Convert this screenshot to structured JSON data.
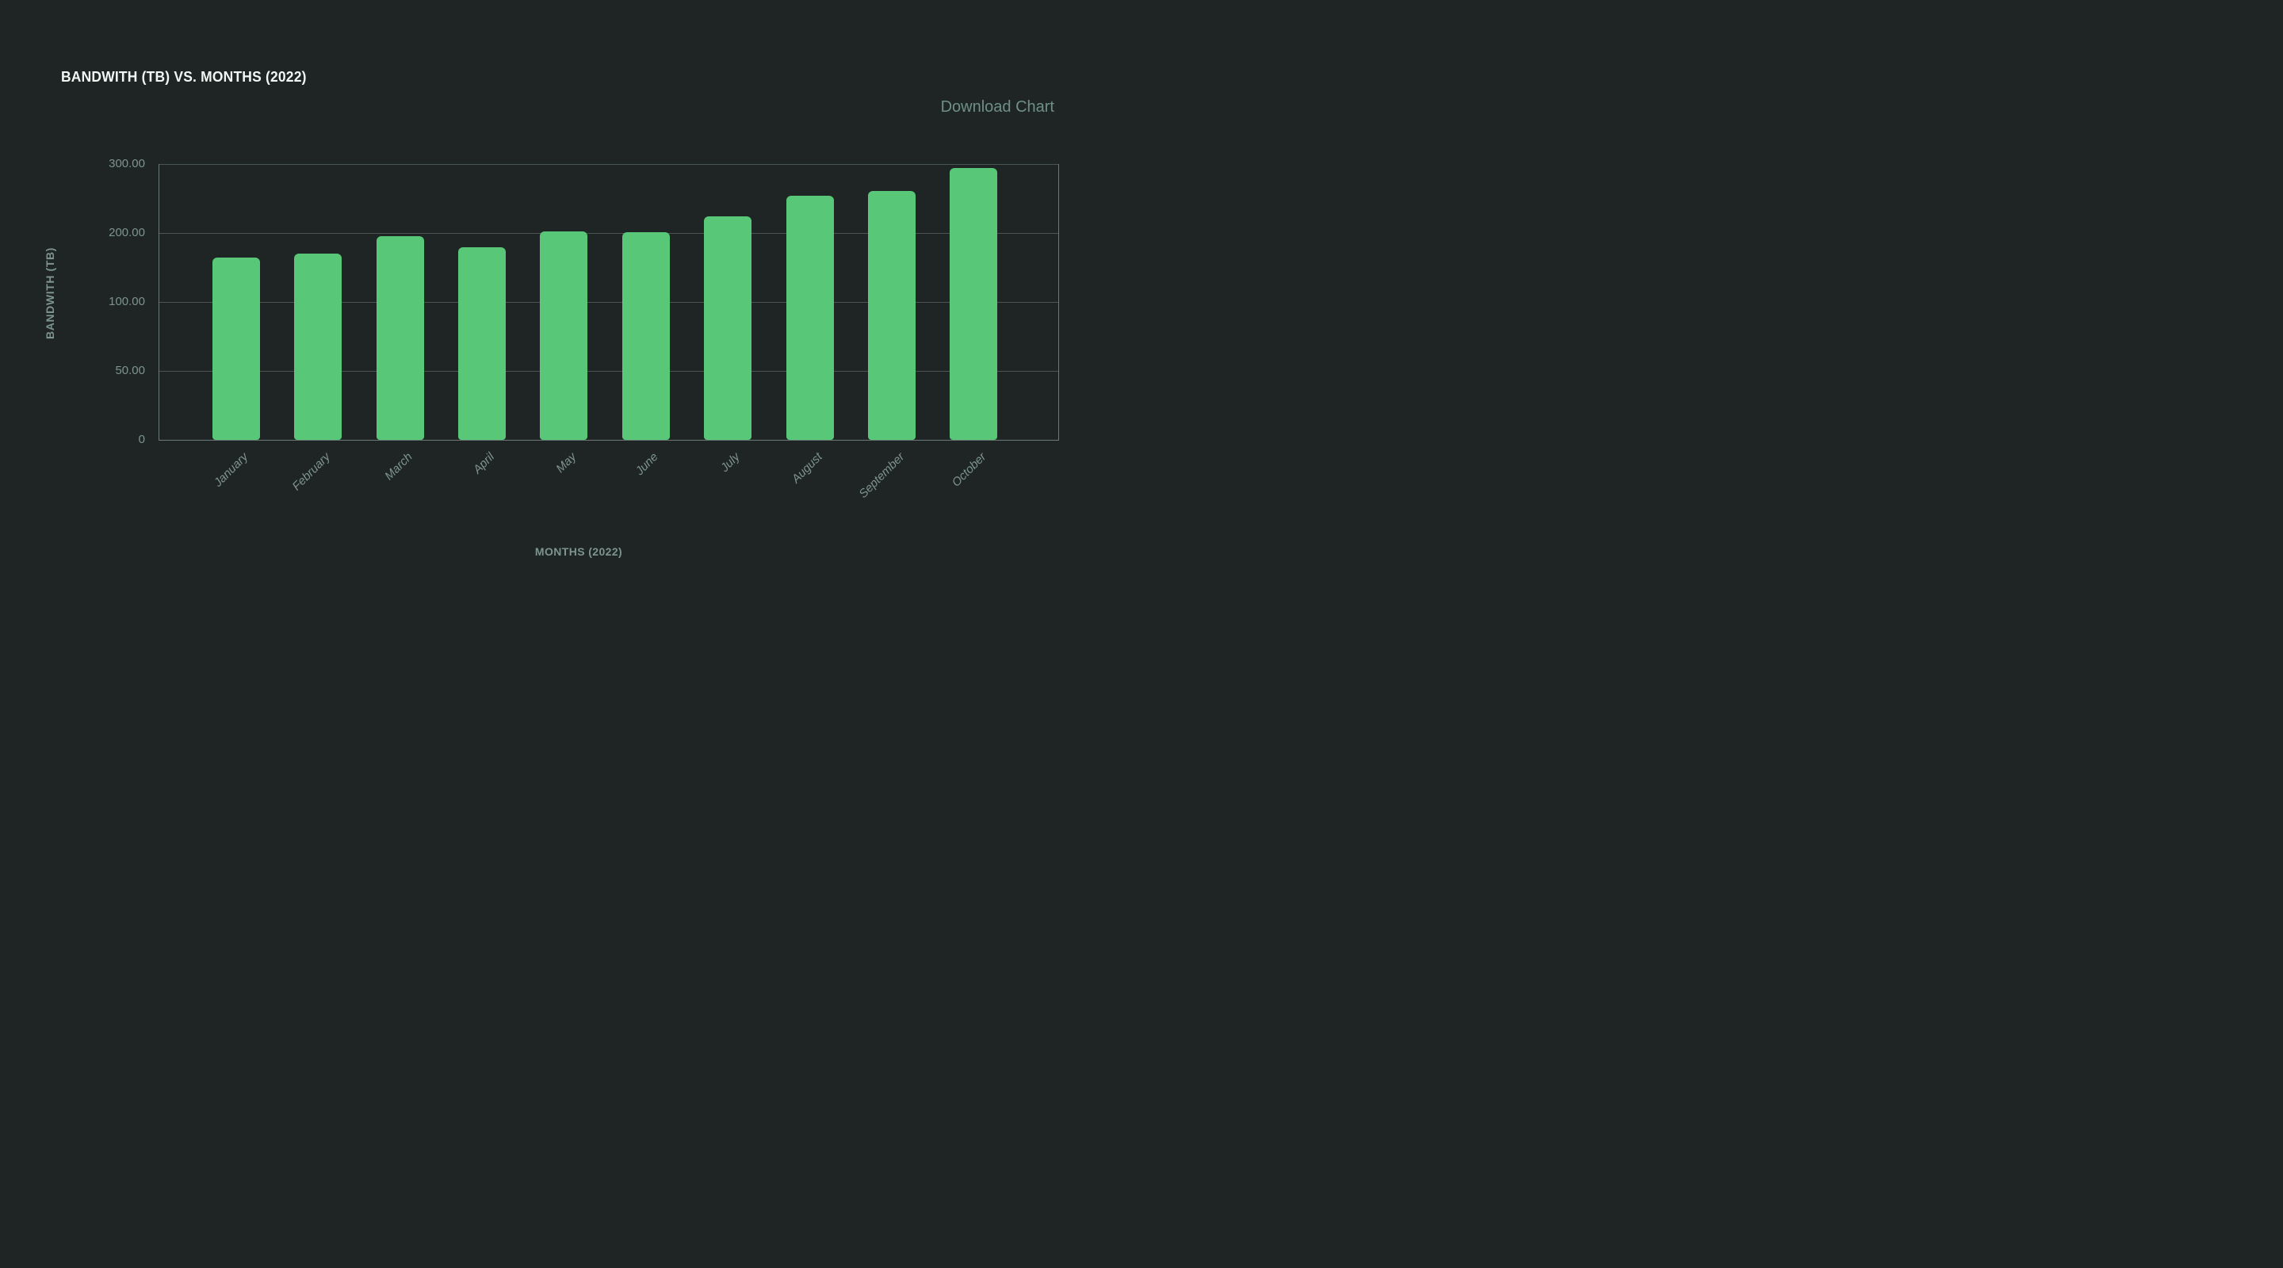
{
  "header": {
    "title": "BANDWITH (TB) VS. MONTHS (2022)",
    "download_label": "Download Chart"
  },
  "chart_data": {
    "type": "bar",
    "title": "BANDWITH (TB) VS. MONTHS (2022)",
    "categories": [
      "January",
      "February",
      "March",
      "April",
      "May",
      "June",
      "July",
      "August",
      "September",
      "October"
    ],
    "values": [
      164,
      170,
      196,
      179,
      202,
      201,
      224,
      254,
      261,
      294
    ],
    "xlabel": "MONTHS (2022)",
    "ylabel": "BANDWITH (TB)",
    "y_ticks": [
      0,
      50,
      100,
      200,
      300
    ],
    "y_tick_labels": [
      "0",
      "50.00",
      "100.00",
      "200.00",
      "300.00"
    ],
    "y_axis_note": "ticks equally spaced (non-linear scale)",
    "grid": true,
    "legend": false,
    "bar_color": "#58c778"
  },
  "colors": {
    "background": "#1f2524",
    "bar": "#58c778",
    "gridline": "#4a5751",
    "axis_border": "#6b7a74",
    "tick_text": "#7d948c",
    "title_text": "#f2f6f4",
    "download_text": "#6f9086"
  }
}
